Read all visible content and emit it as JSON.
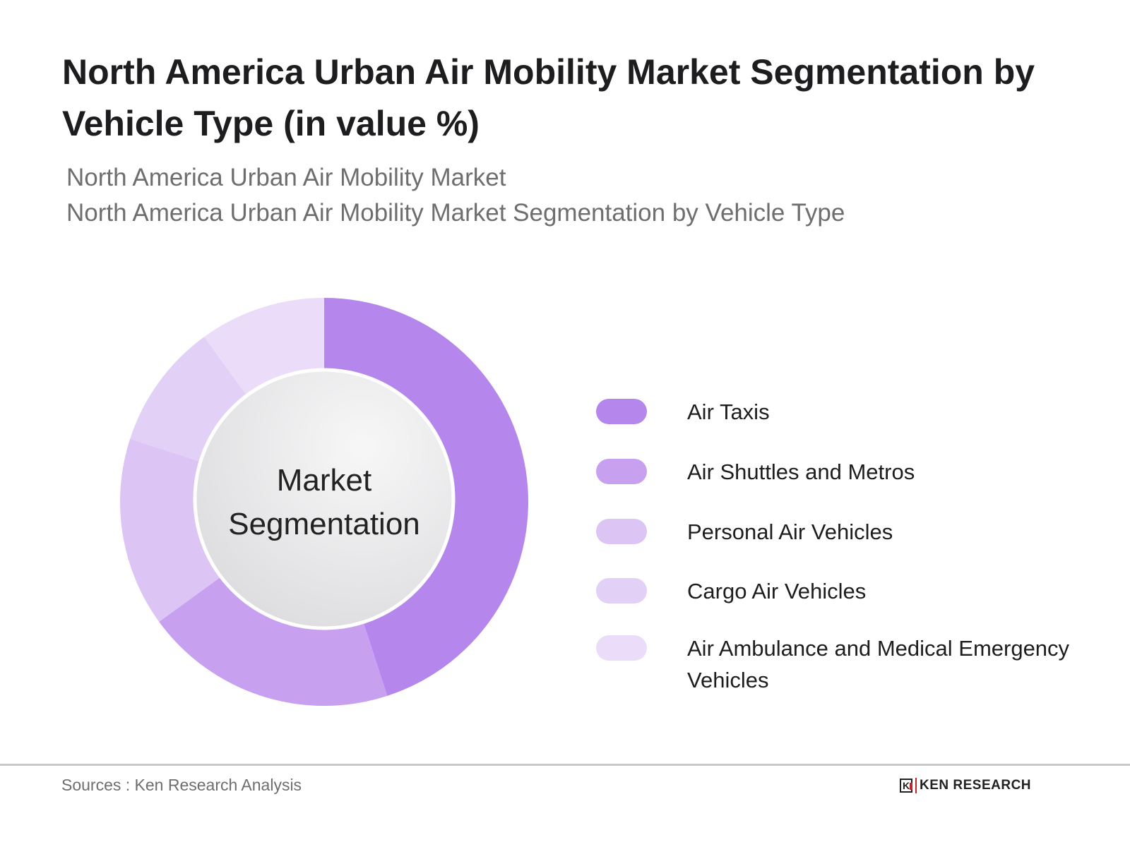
{
  "title": "North America Urban Air Mobility Market Segmentation by Vehicle Type (in value %)",
  "subtitle_line1": "North America Urban Air Mobility Market",
  "subtitle_line2": "North America Urban Air Mobility Market Segmentation by Vehicle Type",
  "center_label_line1": "Market",
  "center_label_line2": "Segmentation",
  "source": "Sources : Ken Research Analysis",
  "logo": {
    "mark": "K",
    "text": "KEN RESEARCH",
    "accent": "#c0272d"
  },
  "chart_data": {
    "type": "pie",
    "variant": "donut",
    "title": "North America Urban Air Mobility Market Segmentation by Vehicle Type (in value %)",
    "categories": [
      "Air Taxis",
      "Air Shuttles and Metros",
      "Personal Air Vehicles",
      "Cargo Air Vehicles",
      "Air Ambulance and Medical Emergency Vehicles"
    ],
    "values": [
      45,
      20,
      15,
      10,
      10
    ],
    "colors": [
      "#b586ec",
      "#c8a0f0",
      "#dcc4f5",
      "#e3d0f7",
      "#ebdcf9"
    ],
    "legend_position": "right",
    "start_angle": "top, clockwise"
  }
}
